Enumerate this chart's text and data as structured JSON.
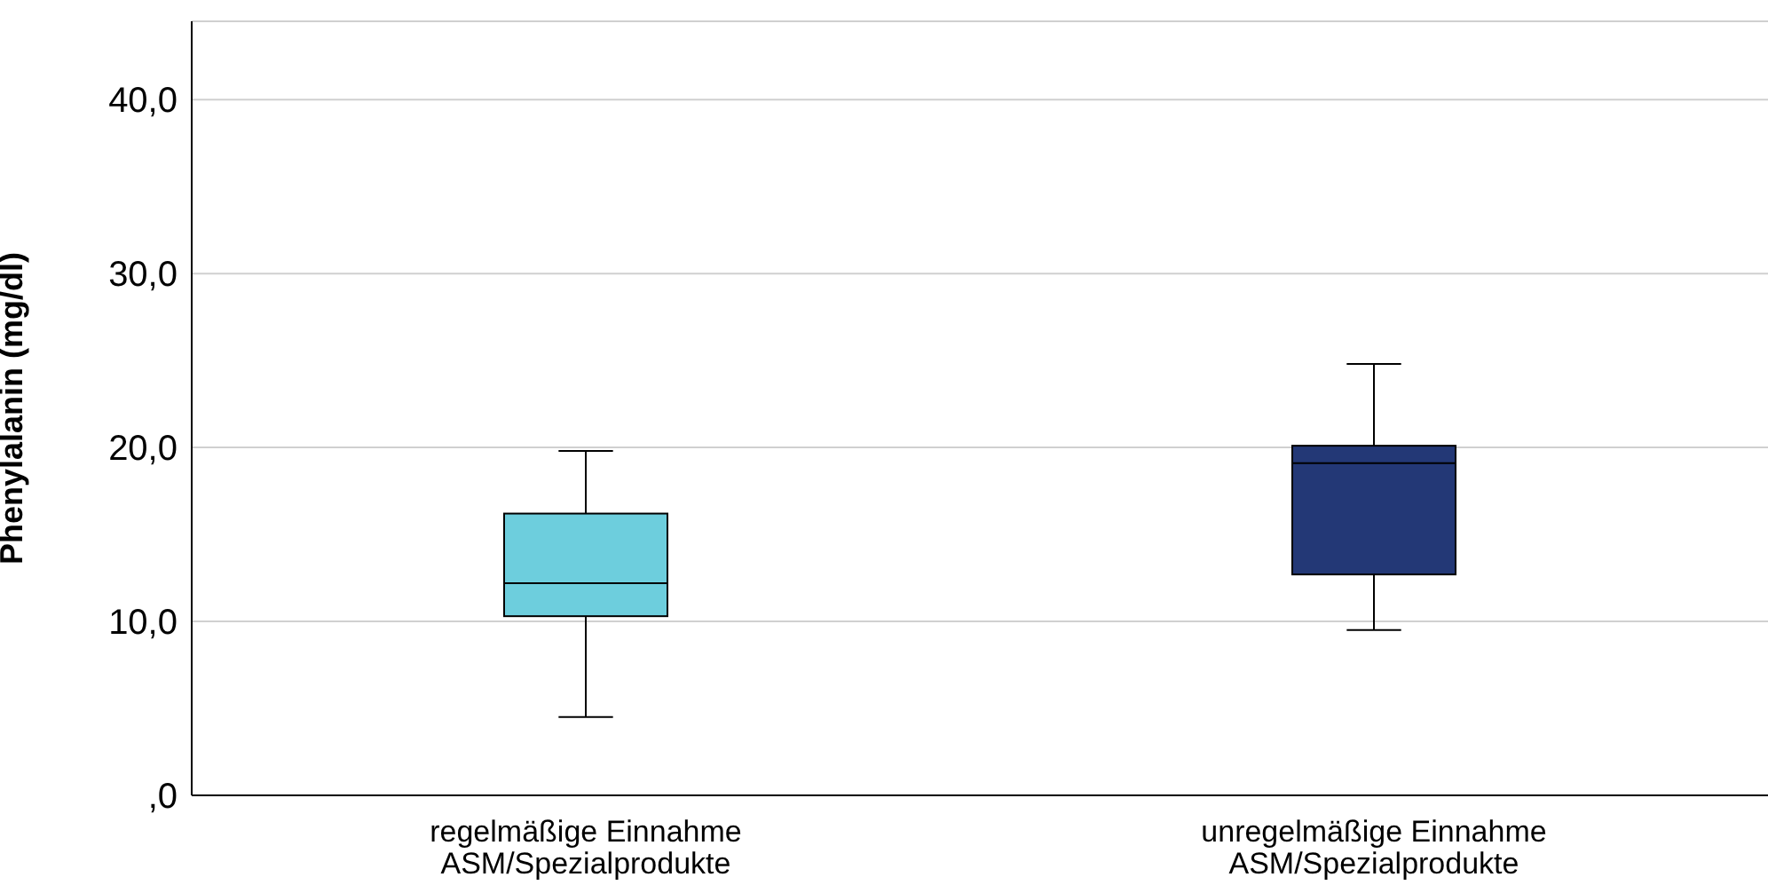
{
  "chart_data": {
    "type": "box",
    "ylabel": "Phenylalanin (mg/dl)",
    "categories": [
      "regelmäßige Einnahme\nASM/Spezialprodukte",
      "unregelmäßige Einnahme\nASM/Spezialprodukte"
    ],
    "colors": [
      "#6dcedd",
      "#233876"
    ],
    "boxes": [
      {
        "low": 4.5,
        "q1": 10.3,
        "median": 12.2,
        "q3": 16.2,
        "high": 19.8
      },
      {
        "low": 9.5,
        "q1": 12.7,
        "median": 19.1,
        "q3": 20.1,
        "high": 24.8
      }
    ],
    "ylim": [
      0,
      44.5
    ],
    "yticks": [
      {
        "value": 0,
        "label": ",0"
      },
      {
        "value": 10,
        "label": "10,0"
      },
      {
        "value": 20,
        "label": "20,0"
      },
      {
        "value": 30,
        "label": "30,0"
      },
      {
        "value": 40,
        "label": "40,0"
      }
    ],
    "grid": "y"
  }
}
